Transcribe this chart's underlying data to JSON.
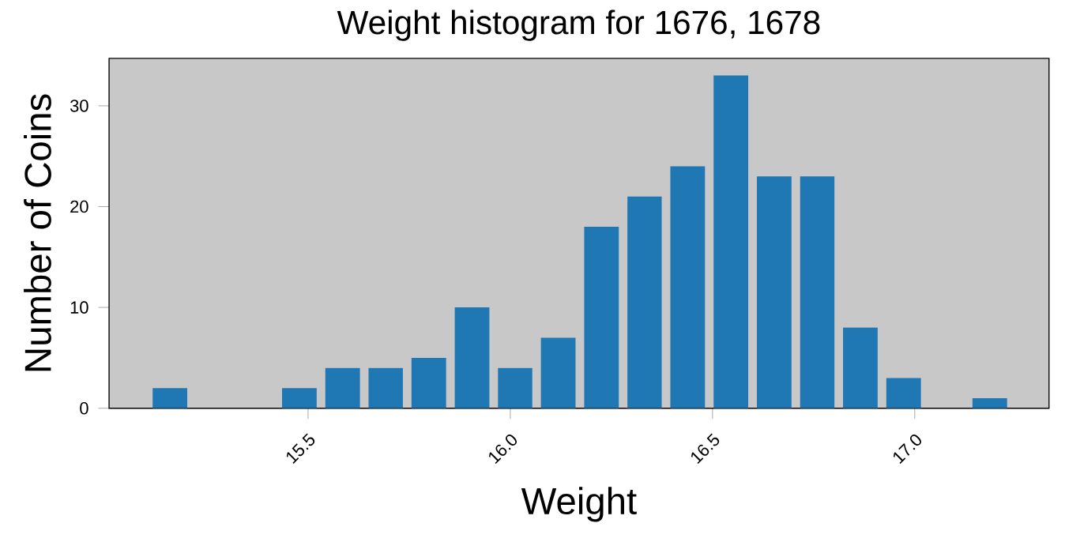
{
  "chart_data": {
    "type": "histogram",
    "title": "Weight histogram for 1676, 1678",
    "xlabel": "Weight",
    "ylabel": "Number of Coins",
    "bins": [
      15.105,
      15.212,
      15.425,
      15.532,
      15.639,
      15.745,
      15.852,
      15.959,
      16.065,
      16.172,
      16.279,
      16.385,
      16.492,
      16.599,
      16.706,
      16.812,
      16.919,
      17.026,
      17.132,
      17.239
    ],
    "values": [
      2,
      0,
      2,
      4,
      4,
      5,
      10,
      4,
      7,
      18,
      21,
      24,
      33,
      23,
      23,
      8,
      3,
      0,
      1
    ],
    "color": "#1f77b4",
    "xlim": [
      15.008,
      17.332
    ],
    "ylim": [
      0,
      34.7
    ],
    "xticks": [
      {
        "value": 15.5,
        "label": "15.5"
      },
      {
        "value": 16.0,
        "label": "16.0"
      },
      {
        "value": 16.5,
        "label": "16.5"
      },
      {
        "value": 17.0,
        "label": "17.0"
      }
    ],
    "yticks": [
      0,
      10,
      20,
      30
    ]
  }
}
